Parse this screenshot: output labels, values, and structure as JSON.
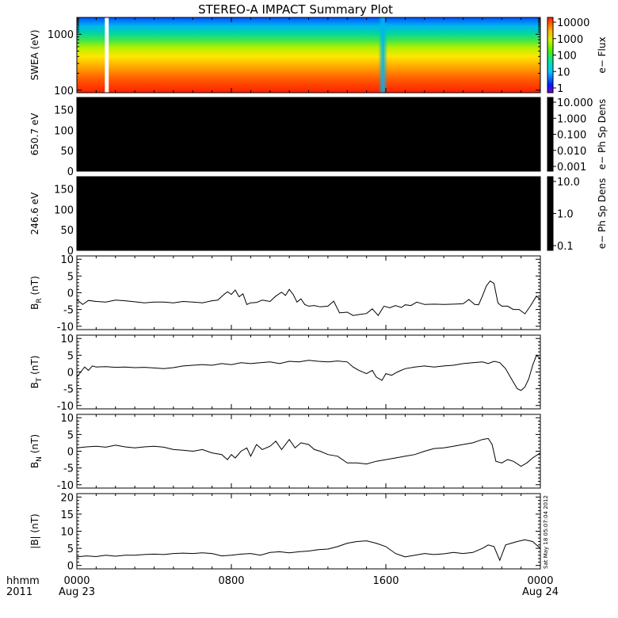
{
  "chart_data": {
    "type": "line",
    "title": "STEREO-A IMPACT Summary Plot",
    "x_ticks": [
      "0000",
      "0800",
      "1600",
      "0000"
    ],
    "x_date_labels": [
      "Aug 23",
      "Aug 24"
    ],
    "x_prefix_labels": [
      "hhmm",
      "2011"
    ],
    "x_range_hours": [
      0,
      24
    ],
    "stamp": "Sat May 18 05:07:04 2012",
    "panels": [
      {
        "id": "swea",
        "kind": "spectrogram",
        "ylabel": "SWEA (eV)",
        "y_ticks": [
          "1000",
          "100"
        ],
        "y_range": [
          90,
          2000
        ],
        "y_log": true,
        "cbar_label": "e− Flux",
        "cbar_ticks": [
          "10000",
          "1000",
          "100",
          "10",
          "1"
        ],
        "cbar_log": true,
        "data_gap_hours": [
          1.45,
          1.65
        ],
        "dropout_hour": 15.85
      },
      {
        "id": "pad650",
        "kind": "spectrogram",
        "ylabel": "650.7 eV",
        "y_ticks": [
          "150",
          "100",
          "50",
          "0"
        ],
        "y_range": [
          0,
          180
        ],
        "cbar_label": "e− Ph Sp Dens",
        "cbar_ticks": [
          "10.000",
          "1.000",
          "0.100",
          "0.010",
          "0.001"
        ],
        "cbar_log": true
      },
      {
        "id": "pad246",
        "kind": "spectrogram",
        "ylabel": "246.6 eV",
        "y_ticks": [
          "150",
          "100",
          "50",
          "0"
        ],
        "y_range": [
          0,
          180
        ],
        "cbar_label": "e− Ph Sp Dens",
        "cbar_ticks": [
          "10.0",
          "1.0",
          "0.1"
        ],
        "cbar_log": true
      },
      {
        "id": "br",
        "kind": "line",
        "ylabel": "B",
        "ylabel_sub": "R",
        "ylabel_unit": " (nT)",
        "y_ticks": [
          10,
          5,
          0,
          -5,
          -10
        ],
        "y_range": [
          -11,
          11
        ],
        "x": [
          0,
          0.3,
          0.6,
          1.0,
          1.5,
          2.0,
          2.5,
          3.0,
          3.5,
          4.0,
          4.5,
          5.0,
          5.5,
          6.0,
          6.5,
          7.0,
          7.3,
          7.6,
          7.8,
          8.0,
          8.2,
          8.4,
          8.6,
          8.8,
          9.0,
          9.3,
          9.6,
          10.0,
          10.3,
          10.6,
          10.8,
          11.0,
          11.2,
          11.4,
          11.6,
          11.8,
          12.0,
          12.3,
          12.6,
          13.0,
          13.3,
          13.6,
          14.0,
          14.3,
          14.6,
          15.0,
          15.3,
          15.6,
          15.9,
          16.2,
          16.5,
          16.8,
          17.0,
          17.3,
          17.6,
          18.0,
          18.5,
          19.0,
          19.5,
          20.0,
          20.3,
          20.6,
          20.8,
          21.0,
          21.2,
          21.4,
          21.6,
          21.8,
          22.0,
          22.3,
          22.6,
          22.9,
          23.2,
          23.5,
          23.8,
          24.0
        ],
        "y": [
          -2.0,
          -3.5,
          -2.3,
          -2.6,
          -2.8,
          -2.2,
          -2.4,
          -2.7,
          -3.0,
          -2.8,
          -2.8,
          -3.0,
          -2.6,
          -2.8,
          -3.0,
          -2.4,
          -2.2,
          -0.6,
          0.3,
          -0.5,
          0.8,
          -1.2,
          -0.3,
          -3.5,
          -3.0,
          -2.9,
          -2.2,
          -2.6,
          -1.0,
          0.2,
          -0.8,
          1.0,
          -0.5,
          -2.8,
          -1.8,
          -3.5,
          -4.0,
          -3.8,
          -4.2,
          -4.0,
          -2.5,
          -6.0,
          -5.8,
          -6.8,
          -6.5,
          -6.2,
          -4.8,
          -6.8,
          -4.0,
          -4.5,
          -3.8,
          -4.4,
          -3.6,
          -3.8,
          -2.8,
          -3.5,
          -3.4,
          -3.5,
          -3.4,
          -3.3,
          -2.0,
          -3.5,
          -3.6,
          -1.0,
          2.0,
          3.5,
          2.8,
          -3.0,
          -4.0,
          -4.0,
          -5.0,
          -5.0,
          -6.3,
          -3.8,
          -1.0,
          -2.0
        ]
      },
      {
        "id": "bt",
        "kind": "line",
        "ylabel": "B",
        "ylabel_sub": "T",
        "ylabel_unit": " (nT)",
        "y_ticks": [
          10,
          5,
          0,
          -5,
          -10
        ],
        "y_range": [
          -11,
          11
        ],
        "x": [
          0,
          0.2,
          0.4,
          0.6,
          0.8,
          1.0,
          1.5,
          2.0,
          2.5,
          3.0,
          3.5,
          4.0,
          4.5,
          5.0,
          5.5,
          6.0,
          6.5,
          7.0,
          7.5,
          8.0,
          8.5,
          9.0,
          9.5,
          10.0,
          10.5,
          11.0,
          11.5,
          12.0,
          12.5,
          13.0,
          13.5,
          14.0,
          14.3,
          14.6,
          15.0,
          15.3,
          15.5,
          15.8,
          16.0,
          16.3,
          16.6,
          17.0,
          17.5,
          18.0,
          18.5,
          19.0,
          19.5,
          20.0,
          20.5,
          21.0,
          21.3,
          21.6,
          21.9,
          22.2,
          22.5,
          22.8,
          23.0,
          23.2,
          23.4,
          23.6,
          23.8,
          24.0
        ],
        "y": [
          -1.5,
          0.0,
          1.5,
          0.5,
          1.8,
          1.5,
          1.6,
          1.4,
          1.5,
          1.3,
          1.4,
          1.2,
          1.0,
          1.3,
          1.8,
          2.0,
          2.2,
          2.0,
          2.5,
          2.2,
          2.8,
          2.5,
          2.8,
          3.0,
          2.5,
          3.2,
          3.0,
          3.5,
          3.2,
          3.0,
          3.3,
          3.0,
          1.5,
          0.5,
          -0.5,
          0.5,
          -1.5,
          -2.5,
          -0.5,
          -1.0,
          0.0,
          1.0,
          1.5,
          1.8,
          1.5,
          1.8,
          2.0,
          2.5,
          2.8,
          3.0,
          2.5,
          3.2,
          2.8,
          1.0,
          -2.0,
          -5.0,
          -5.5,
          -4.5,
          -2.0,
          2.0,
          5.0,
          4.0
        ]
      },
      {
        "id": "bn",
        "kind": "line",
        "ylabel": "B",
        "ylabel_sub": "N",
        "ylabel_unit": " (nT)",
        "y_ticks": [
          10,
          5,
          0,
          -5,
          -10
        ],
        "y_range": [
          -11,
          11
        ],
        "x": [
          0,
          0.5,
          1.0,
          1.5,
          2.0,
          2.5,
          3.0,
          3.5,
          4.0,
          4.5,
          5.0,
          5.5,
          6.0,
          6.5,
          7.0,
          7.5,
          7.8,
          8.0,
          8.2,
          8.5,
          8.8,
          9.0,
          9.3,
          9.6,
          10.0,
          10.3,
          10.6,
          11.0,
          11.3,
          11.6,
          12.0,
          12.3,
          12.6,
          13.0,
          13.5,
          14.0,
          14.5,
          15.0,
          15.5,
          16.0,
          16.5,
          17.0,
          17.5,
          18.0,
          18.5,
          19.0,
          19.5,
          20.0,
          20.5,
          21.0,
          21.3,
          21.5,
          21.7,
          22.0,
          22.3,
          22.6,
          23.0,
          23.3,
          23.6,
          24.0
        ],
        "y": [
          1.0,
          1.3,
          1.5,
          1.2,
          1.8,
          1.3,
          1.0,
          1.3,
          1.5,
          1.2,
          0.5,
          0.3,
          0.0,
          0.5,
          -0.5,
          -1.0,
          -2.5,
          -1.0,
          -2.0,
          0.0,
          1.0,
          -1.5,
          2.0,
          0.5,
          1.5,
          3.0,
          0.5,
          3.5,
          1.0,
          2.5,
          2.0,
          0.5,
          0.0,
          -1.0,
          -1.5,
          -3.5,
          -3.5,
          -3.8,
          -3.0,
          -2.5,
          -2.0,
          -1.5,
          -1.0,
          0.0,
          0.8,
          1.0,
          1.5,
          2.0,
          2.5,
          3.5,
          3.8,
          2.0,
          -3.0,
          -3.5,
          -2.5,
          -3.0,
          -4.5,
          -3.5,
          -2.0,
          -0.5
        ]
      },
      {
        "id": "bmag",
        "kind": "line",
        "ylabel": "|B| (nT)",
        "y_ticks": [
          20,
          15,
          10,
          5,
          0
        ],
        "y_range": [
          -1,
          21
        ],
        "x": [
          0,
          0.5,
          1.0,
          1.5,
          2.0,
          2.5,
          3.0,
          3.5,
          4.0,
          4.5,
          5.0,
          5.5,
          6.0,
          6.5,
          7.0,
          7.5,
          8.0,
          8.5,
          9.0,
          9.5,
          10.0,
          10.5,
          11.0,
          11.5,
          12.0,
          12.5,
          13.0,
          13.5,
          14.0,
          14.5,
          15.0,
          15.5,
          16.0,
          16.5,
          17.0,
          17.5,
          18.0,
          18.5,
          19.0,
          19.5,
          20.0,
          20.5,
          21.0,
          21.3,
          21.6,
          21.9,
          22.2,
          22.5,
          22.8,
          23.2,
          23.6,
          24.0
        ],
        "y": [
          2.5,
          2.8,
          2.6,
          3.0,
          2.7,
          3.0,
          3.0,
          3.2,
          3.3,
          3.2,
          3.5,
          3.6,
          3.5,
          3.7,
          3.5,
          2.8,
          3.0,
          3.3,
          3.5,
          3.0,
          3.8,
          4.0,
          3.7,
          4.0,
          4.2,
          4.6,
          4.8,
          5.5,
          6.5,
          7.0,
          7.2,
          6.5,
          5.5,
          3.5,
          2.5,
          3.0,
          3.5,
          3.2,
          3.4,
          3.8,
          3.5,
          3.8,
          5.0,
          6.0,
          5.5,
          1.5,
          6.0,
          6.5,
          7.0,
          7.5,
          7.0,
          5.0
        ]
      }
    ]
  }
}
